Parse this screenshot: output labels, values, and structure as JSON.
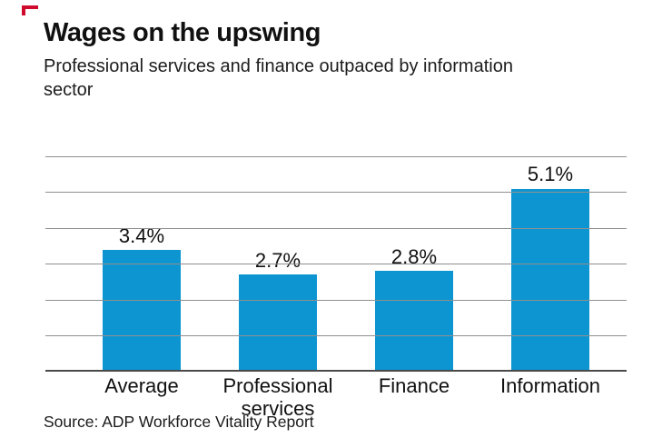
{
  "brand": {
    "corner_mark_color": "#cf0a2c"
  },
  "header": {
    "title": "Wages on the upswing",
    "subtitle_line1": "Professional services and finance outpaced by information",
    "subtitle_line2": "sector"
  },
  "chart_data": {
    "type": "bar",
    "title": "Wages on the upswing",
    "subtitle": "Professional services and finance outpaced by information sector",
    "categories": [
      "Average",
      "Professional services",
      "Finance",
      "Information"
    ],
    "values": [
      3.4,
      2.7,
      2.8,
      5.1
    ],
    "value_labels": [
      "3.4%",
      "2.7%",
      "2.8%",
      "5.1%"
    ],
    "xlabel": "",
    "ylabel": "",
    "ylim": [
      0,
      6
    ],
    "gridline_step": 1,
    "grid": true,
    "legend": false,
    "y_tick_labels_shown": false,
    "bar_color": "#0d95d2",
    "gridline_color": "#8f8f8f",
    "baseline_color": "#4a4a4a"
  },
  "source": {
    "text": "Source: ADP Workforce Vitality Report"
  }
}
